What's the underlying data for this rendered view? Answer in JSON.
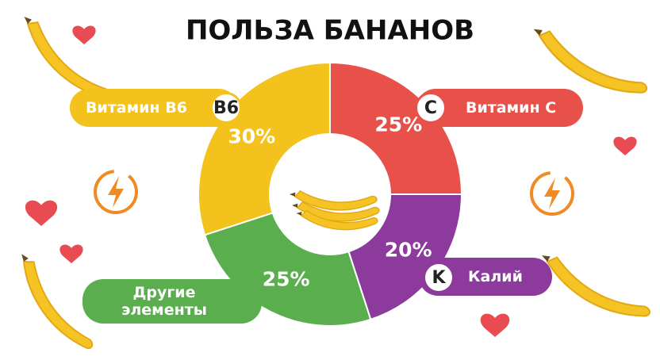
{
  "chart_data": {
    "type": "pie",
    "title": "ПОЛЬЗА БАНАНОВ",
    "categories": [
      "Витамин C",
      "Калий",
      "Другие элементы",
      "Витамин B6"
    ],
    "values": [
      25,
      20,
      25,
      30
    ],
    "value_labels": [
      "25%",
      "20%",
      "25%",
      "30%"
    ],
    "badges": [
      "C",
      "K",
      null,
      "B6"
    ],
    "colors": [
      "#e8504a",
      "#8c3a9c",
      "#5aae4e",
      "#f4c21c"
    ],
    "donut": true
  }
}
